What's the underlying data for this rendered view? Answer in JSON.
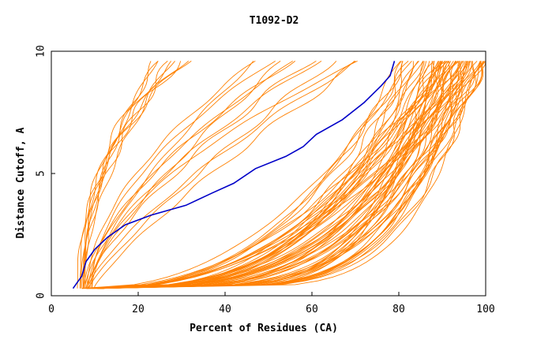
{
  "chart_data": {
    "type": "line",
    "title": "T1092-D2",
    "xlabel": "Percent of Residues (CA)",
    "ylabel": "Distance Cutoff, A",
    "xlim": [
      0,
      100
    ],
    "ylim": [
      0,
      10
    ],
    "xticks": [
      "0",
      "20",
      "40",
      "60",
      "80",
      "100"
    ],
    "yticks": [
      "0",
      "5",
      "10"
    ],
    "grid": false,
    "legend": "none",
    "colors": {
      "highlight": "#0000c8",
      "others": "#ff8000",
      "axis": "#000000"
    },
    "highlight_series": {
      "x": [
        5,
        7,
        8,
        10,
        13,
        17,
        23,
        31,
        37,
        42,
        47,
        54,
        58,
        61,
        67,
        72,
        76,
        78,
        79
      ],
      "y": [
        0.3,
        0.8,
        1.4,
        1.9,
        2.4,
        2.9,
        3.3,
        3.7,
        4.2,
        4.6,
        5.2,
        5.7,
        6.1,
        6.6,
        7.2,
        7.9,
        8.6,
        9.0,
        9.6
      ]
    },
    "other_series_groups": [
      {
        "family": "steep",
        "count": 9,
        "x_at_0_3": [
          6,
          8
        ],
        "x_at_9_6": [
          20,
          32
        ],
        "curve": 0.5
      },
      {
        "family": "mid",
        "count": 12,
        "x_at_0_3": [
          7,
          10
        ],
        "x_at_9_6": [
          42,
          75
        ],
        "curve": 0.7
      },
      {
        "family": "flat",
        "count": 40,
        "x_at_0_3": [
          7,
          12
        ],
        "x_at_9_6": [
          80,
          100
        ],
        "curve": 2.8
      },
      {
        "family": "knee",
        "count": 28,
        "x_at_0_3": [
          8,
          12
        ],
        "x_at_9_6": [
          86,
          100
        ],
        "curve": 5.0
      }
    ]
  }
}
